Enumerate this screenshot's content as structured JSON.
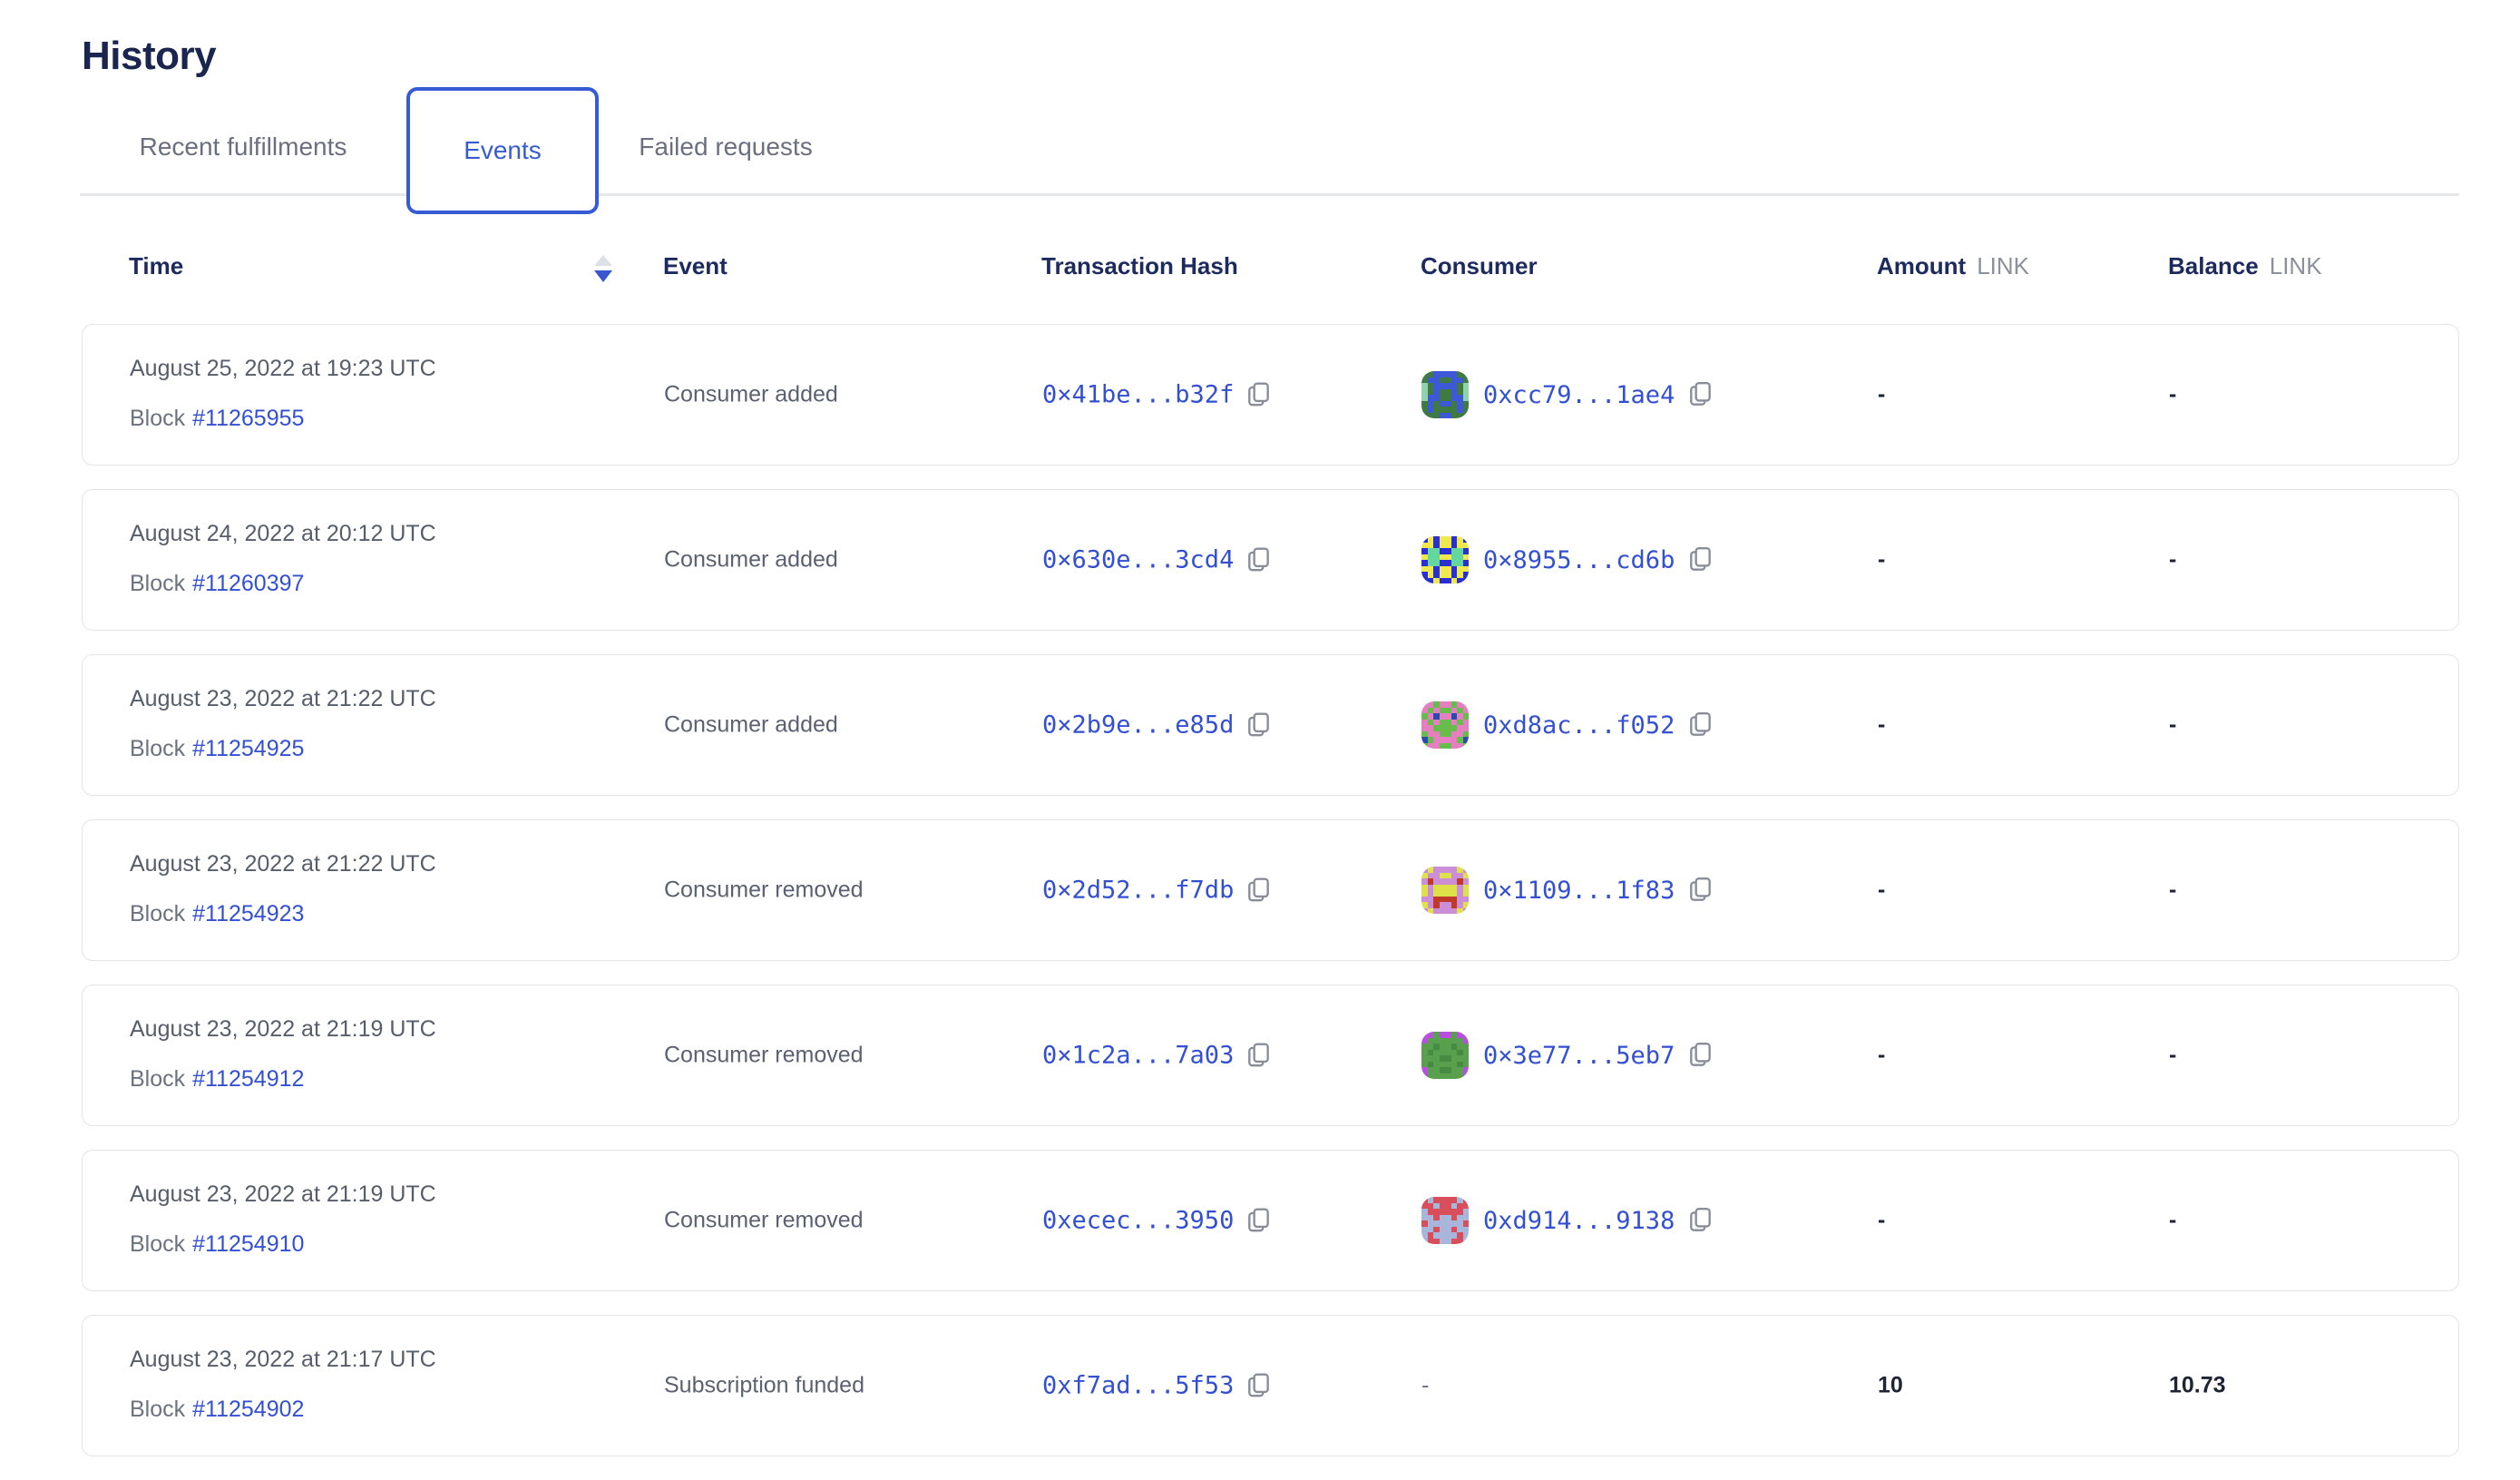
{
  "page": {
    "title": "History"
  },
  "tabs": [
    {
      "label": "Recent fulfillments",
      "active": false
    },
    {
      "label": "Events",
      "active": true
    },
    {
      "label": "Failed requests",
      "active": false
    }
  ],
  "sort": {
    "column": "Time",
    "direction": "desc"
  },
  "icons": {
    "sort": "sort-arrows-icon",
    "copy": "copy-icon"
  },
  "colors": {
    "accent_blue": "#375bd2",
    "link_blue": "#3350d2",
    "heading_navy": "#1c2a5e",
    "title_navy": "#1a2550",
    "body_gray": "#5a6170",
    "muted_gray": "#8a909c",
    "card_border": "#e3e4e8",
    "sort_inactive": "#dde0e6",
    "value_dark": "#1d2433"
  },
  "table": {
    "headers": {
      "time": "Time",
      "event": "Event",
      "transaction_hash": "Transaction Hash",
      "consumer": "Consumer",
      "amount": "Amount",
      "balance": "Balance",
      "unit": "LINK"
    },
    "block_prefix": "Block",
    "rows": [
      {
        "time": "August 25, 2022 at 19:23 UTC",
        "block": "#11265955",
        "event": "Consumer added",
        "tx_hash": "0×41be...b32f",
        "consumer_hash": "0xcc79...1ae4",
        "amount": "-",
        "balance": "-",
        "identicon": {
          "colors": [
            "#3e7a42",
            "#3f58d8",
            "#8fd2ab"
          ],
          "grid": [
            [
              0,
              0,
              1,
              1,
              1,
              1,
              0,
              0
            ],
            [
              0,
              1,
              1,
              0,
              0,
              1,
              1,
              0
            ],
            [
              2,
              0,
              1,
              1,
              1,
              1,
              0,
              2
            ],
            [
              2,
              0,
              1,
              0,
              0,
              1,
              0,
              2
            ],
            [
              2,
              1,
              1,
              0,
              0,
              1,
              1,
              2
            ],
            [
              0,
              1,
              0,
              1,
              1,
              0,
              1,
              0
            ],
            [
              0,
              1,
              0,
              0,
              0,
              0,
              1,
              0
            ],
            [
              0,
              0,
              0,
              1,
              1,
              0,
              0,
              0
            ]
          ]
        }
      },
      {
        "time": "August 24, 2022 at 20:12 UTC",
        "block": "#11260397",
        "event": "Consumer added",
        "tx_hash": "0×630e...3cd4",
        "consumer_hash": "0×8955...cd6b",
        "amount": "-",
        "balance": "-",
        "identicon": {
          "colors": [
            "#2a2fd4",
            "#efe84e",
            "#63d79e"
          ],
          "grid": [
            [
              0,
              1,
              0,
              1,
              1,
              0,
              1,
              0
            ],
            [
              1,
              1,
              0,
              1,
              1,
              0,
              1,
              1
            ],
            [
              0,
              2,
              2,
              0,
              0,
              2,
              2,
              0
            ],
            [
              1,
              2,
              2,
              1,
              1,
              2,
              2,
              1
            ],
            [
              0,
              2,
              2,
              0,
              0,
              2,
              2,
              0
            ],
            [
              1,
              1,
              0,
              1,
              1,
              0,
              1,
              1
            ],
            [
              0,
              1,
              0,
              1,
              1,
              0,
              1,
              0
            ],
            [
              0,
              0,
              1,
              0,
              0,
              1,
              0,
              0
            ]
          ]
        }
      },
      {
        "time": "August 23, 2022 at 21:22 UTC",
        "block": "#11254925",
        "event": "Consumer added",
        "tx_hash": "0×2b9e...e85d",
        "consumer_hash": "0xd8ac...f052",
        "amount": "-",
        "balance": "-",
        "identicon": {
          "colors": [
            "#67bd4b",
            "#e57fc1",
            "#2c49ae"
          ],
          "grid": [
            [
              1,
              1,
              0,
              1,
              1,
              0,
              1,
              1
            ],
            [
              1,
              0,
              1,
              0,
              0,
              1,
              0,
              1
            ],
            [
              0,
              1,
              2,
              1,
              1,
              2,
              1,
              0
            ],
            [
              1,
              0,
              1,
              0,
              0,
              1,
              0,
              1
            ],
            [
              1,
              1,
              0,
              0,
              0,
              0,
              1,
              1
            ],
            [
              0,
              1,
              1,
              0,
              0,
              1,
              1,
              0
            ],
            [
              2,
              0,
              1,
              1,
              1,
              1,
              0,
              2
            ],
            [
              0,
              1,
              1,
              0,
              0,
              1,
              1,
              0
            ]
          ]
        }
      },
      {
        "time": "August 23, 2022 at 21:22 UTC",
        "block": "#11254923",
        "event": "Consumer removed",
        "tx_hash": "0×2d52...f7db",
        "consumer_hash": "0×1109...1f83",
        "amount": "-",
        "balance": "-",
        "identicon": {
          "colors": [
            "#cd8ed8",
            "#dfe14b",
            "#bf3a28"
          ],
          "grid": [
            [
              0,
              1,
              0,
              0,
              0,
              0,
              1,
              0
            ],
            [
              1,
              0,
              0,
              1,
              1,
              0,
              0,
              1
            ],
            [
              0,
              2,
              0,
              0,
              0,
              0,
              2,
              0
            ],
            [
              1,
              0,
              1,
              1,
              1,
              1,
              0,
              1
            ],
            [
              1,
              0,
              1,
              1,
              1,
              1,
              0,
              1
            ],
            [
              0,
              0,
              2,
              2,
              2,
              2,
              0,
              0
            ],
            [
              1,
              0,
              2,
              0,
              0,
              2,
              0,
              1
            ],
            [
              0,
              1,
              0,
              0,
              0,
              0,
              1,
              0
            ]
          ]
        }
      },
      {
        "time": "August 23, 2022 at 21:19 UTC",
        "block": "#11254912",
        "event": "Consumer removed",
        "tx_hash": "0×1c2a...7a03",
        "consumer_hash": "0×3e77...5eb7",
        "amount": "-",
        "balance": "-",
        "identicon": {
          "colors": [
            "#58a04e",
            "#b750df",
            "#478a41"
          ],
          "grid": [
            [
              1,
              1,
              0,
              1,
              1,
              0,
              1,
              1
            ],
            [
              1,
              0,
              0,
              0,
              0,
              0,
              0,
              1
            ],
            [
              0,
              0,
              2,
              0,
              0,
              2,
              0,
              0
            ],
            [
              0,
              2,
              0,
              0,
              0,
              0,
              2,
              0
            ],
            [
              0,
              0,
              0,
              2,
              2,
              0,
              0,
              0
            ],
            [
              0,
              2,
              0,
              0,
              0,
              0,
              2,
              0
            ],
            [
              1,
              0,
              0,
              2,
              2,
              0,
              0,
              1
            ],
            [
              1,
              0,
              0,
              0,
              0,
              0,
              0,
              1
            ]
          ]
        }
      },
      {
        "time": "August 23, 2022 at 21:19 UTC",
        "block": "#11254910",
        "event": "Consumer removed",
        "tx_hash": "0xecec...3950",
        "consumer_hash": "0xd914...9138",
        "amount": "-",
        "balance": "-",
        "identicon": {
          "colors": [
            "#d84f5b",
            "#a7b6da"
          ],
          "grid": [
            [
              0,
              1,
              0,
              0,
              0,
              0,
              1,
              0
            ],
            [
              0,
              0,
              1,
              0,
              0,
              1,
              0,
              0
            ],
            [
              1,
              0,
              0,
              0,
              0,
              0,
              0,
              1
            ],
            [
              1,
              1,
              0,
              1,
              1,
              0,
              1,
              1
            ],
            [
              0,
              1,
              1,
              1,
              1,
              1,
              1,
              0
            ],
            [
              1,
              1,
              0,
              1,
              1,
              0,
              1,
              1
            ],
            [
              1,
              0,
              1,
              1,
              1,
              1,
              0,
              1
            ],
            [
              1,
              0,
              0,
              1,
              1,
              0,
              0,
              1
            ]
          ]
        }
      },
      {
        "time": "August 23, 2022 at 21:17 UTC",
        "block": "#11254902",
        "event": "Subscription funded",
        "tx_hash": "0xf7ad...5f53",
        "consumer_hash": "",
        "consumer_empty": "-",
        "amount": "10",
        "balance": "10.73",
        "identicon": null
      }
    ]
  }
}
